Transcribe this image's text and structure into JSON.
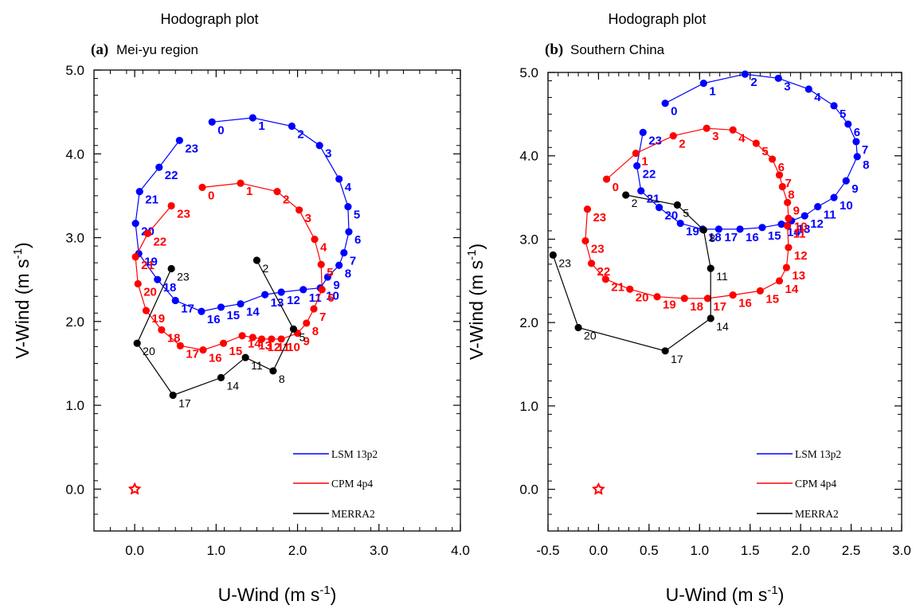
{
  "colors": {
    "lsm": "#0000ff",
    "cpm": "#ff0000",
    "merra": "#000000",
    "origin_marker": "#ff0000"
  },
  "chart_data": [
    {
      "type": "scatter",
      "title": "Hodograph plot",
      "panel_letter": "(a)",
      "subtitle": "Mei-yu region",
      "xlabel": "U-Wind (m s",
      "ylabel": "V-Wind (m s",
      "unit_superscript": "-1",
      "unit_close": ")",
      "xlim": [
        -0.5,
        4.0
      ],
      "ylim": [
        -0.5,
        5.0
      ],
      "xticks": [
        0.0,
        1.0,
        2.0,
        3.0,
        4.0
      ],
      "xtick_labels": [
        "0.0",
        "1.0",
        "2.0",
        "3.0",
        "4.0"
      ],
      "yticks": [
        0.0,
        1.0,
        2.0,
        3.0,
        4.0,
        5.0
      ],
      "ytick_labels": [
        "0.0",
        "1.0",
        "2.0",
        "3.0",
        "4.0",
        "5.0"
      ],
      "legend": [
        "LSM 13p2",
        "CPM 4p4",
        "MERRA2"
      ],
      "legend_position": "bottom-right",
      "origin_marker": {
        "x": 0,
        "y": 0,
        "shape": "star"
      },
      "series": [
        {
          "name": "LSM 13p2",
          "points": [
            {
              "x": 0.95,
              "y": 4.38,
              "label": "0"
            },
            {
              "x": 1.45,
              "y": 4.43,
              "label": "1"
            },
            {
              "x": 1.93,
              "y": 4.33,
              "label": "2"
            },
            {
              "x": 2.27,
              "y": 4.1,
              "label": "3"
            },
            {
              "x": 2.51,
              "y": 3.7,
              "label": "4"
            },
            {
              "x": 2.62,
              "y": 3.37,
              "label": "5"
            },
            {
              "x": 2.63,
              "y": 3.07,
              "label": "6"
            },
            {
              "x": 2.57,
              "y": 2.82,
              "label": "7"
            },
            {
              "x": 2.51,
              "y": 2.67,
              "label": "8"
            },
            {
              "x": 2.37,
              "y": 2.53,
              "label": "9"
            },
            {
              "x": 2.28,
              "y": 2.4,
              "label": "10"
            },
            {
              "x": 2.07,
              "y": 2.38,
              "label": "11"
            },
            {
              "x": 1.8,
              "y": 2.35,
              "label": "12"
            },
            {
              "x": 1.6,
              "y": 2.32,
              "label": "13"
            },
            {
              "x": 1.3,
              "y": 2.21,
              "label": "14"
            },
            {
              "x": 1.06,
              "y": 2.17,
              "label": "15"
            },
            {
              "x": 0.82,
              "y": 2.12,
              "label": "16"
            },
            {
              "x": 0.5,
              "y": 2.25,
              "label": "17"
            },
            {
              "x": 0.28,
              "y": 2.5,
              "label": "18"
            },
            {
              "x": 0.05,
              "y": 2.81,
              "label": "19"
            },
            {
              "x": 0.01,
              "y": 3.17,
              "label": "20"
            },
            {
              "x": 0.06,
              "y": 3.55,
              "label": "21"
            },
            {
              "x": 0.3,
              "y": 3.84,
              "label": "22"
            },
            {
              "x": 0.55,
              "y": 4.16,
              "label": "23"
            }
          ]
        },
        {
          "name": "CPM 4p4",
          "points": [
            {
              "x": 0.83,
              "y": 3.6,
              "label": "0"
            },
            {
              "x": 1.3,
              "y": 3.65,
              "label": "1"
            },
            {
              "x": 1.75,
              "y": 3.55,
              "label": "2"
            },
            {
              "x": 2.02,
              "y": 3.33,
              "label": "3"
            },
            {
              "x": 2.21,
              "y": 2.98,
              "label": "4"
            },
            {
              "x": 2.29,
              "y": 2.68,
              "label": "5"
            },
            {
              "x": 2.3,
              "y": 2.38,
              "label": "6"
            },
            {
              "x": 2.2,
              "y": 2.15,
              "label": "7"
            },
            {
              "x": 2.11,
              "y": 1.98,
              "label": "8"
            },
            {
              "x": 2.0,
              "y": 1.86,
              "label": "9"
            },
            {
              "x": 1.8,
              "y": 1.79,
              "label": "10"
            },
            {
              "x": 1.68,
              "y": 1.79,
              "label": "11"
            },
            {
              "x": 1.56,
              "y": 1.79,
              "label": "12"
            },
            {
              "x": 1.45,
              "y": 1.81,
              "label": "13"
            },
            {
              "x": 1.32,
              "y": 1.83,
              "label": "14"
            },
            {
              "x": 1.09,
              "y": 1.74,
              "label": "15"
            },
            {
              "x": 0.84,
              "y": 1.66,
              "label": "16"
            },
            {
              "x": 0.56,
              "y": 1.71,
              "label": "17"
            },
            {
              "x": 0.33,
              "y": 1.9,
              "label": "18"
            },
            {
              "x": 0.14,
              "y": 2.13,
              "label": "19"
            },
            {
              "x": 0.04,
              "y": 2.45,
              "label": "20"
            },
            {
              "x": 0.01,
              "y": 2.77,
              "label": "21"
            },
            {
              "x": 0.16,
              "y": 3.05,
              "label": "22"
            },
            {
              "x": 0.45,
              "y": 3.38,
              "label": "23"
            }
          ]
        },
        {
          "name": "MERRA2",
          "points": [
            {
              "x": 1.5,
              "y": 2.73,
              "label": "2"
            },
            {
              "x": 1.95,
              "y": 1.91,
              "label": "5"
            },
            {
              "x": 1.7,
              "y": 1.41,
              "label": "8"
            },
            {
              "x": 1.36,
              "y": 1.57,
              "label": "11"
            },
            {
              "x": 1.06,
              "y": 1.33,
              "label": "14"
            },
            {
              "x": 0.47,
              "y": 1.12,
              "label": "17"
            },
            {
              "x": 0.03,
              "y": 1.74,
              "label": "20"
            },
            {
              "x": 0.45,
              "y": 2.63,
              "label": "23"
            }
          ]
        }
      ]
    },
    {
      "type": "scatter",
      "title": "Hodograph plot",
      "panel_letter": "(b)",
      "subtitle": "Southern China",
      "xlabel": "U-Wind (m s",
      "ylabel": "V-Wind (m s",
      "unit_superscript": "-1",
      "unit_close": ")",
      "xlim": [
        -0.5,
        3.0
      ],
      "ylim": [
        -0.5,
        5.0
      ],
      "xticks": [
        -0.5,
        0.0,
        0.5,
        1.0,
        1.5,
        2.0,
        2.5,
        3.0
      ],
      "xtick_labels": [
        "-0.5",
        "0.0",
        "0.5",
        "1.0",
        "1.5",
        "2.0",
        "2.5",
        "3.0"
      ],
      "yticks": [
        0.0,
        1.0,
        2.0,
        3.0,
        4.0,
        5.0
      ],
      "ytick_labels": [
        "0.0",
        "1.0",
        "2.0",
        "3.0",
        "4.0",
        "5.0"
      ],
      "legend": [
        "LSM 13p2",
        "CPM 4p4",
        "MERRA2"
      ],
      "legend_position": "bottom-right",
      "origin_marker": {
        "x": 0,
        "y": 0,
        "shape": "star"
      },
      "series": [
        {
          "name": "LSM 13p2",
          "points": [
            {
              "x": 0.66,
              "y": 4.63,
              "label": "0"
            },
            {
              "x": 1.04,
              "y": 4.87,
              "label": "1"
            },
            {
              "x": 1.45,
              "y": 4.98,
              "label": "2"
            },
            {
              "x": 1.78,
              "y": 4.93,
              "label": "3"
            },
            {
              "x": 2.08,
              "y": 4.8,
              "label": "4"
            },
            {
              "x": 2.33,
              "y": 4.6,
              "label": "5"
            },
            {
              "x": 2.47,
              "y": 4.38,
              "label": "6"
            },
            {
              "x": 2.55,
              "y": 4.17,
              "label": "7"
            },
            {
              "x": 2.56,
              "y": 3.99,
              "label": "8"
            },
            {
              "x": 2.45,
              "y": 3.7,
              "label": "9"
            },
            {
              "x": 2.33,
              "y": 3.5,
              "label": "10"
            },
            {
              "x": 2.17,
              "y": 3.39,
              "label": "11"
            },
            {
              "x": 2.04,
              "y": 3.28,
              "label": "12"
            },
            {
              "x": 1.91,
              "y": 3.22,
              "label": "13"
            },
            {
              "x": 1.81,
              "y": 3.18,
              "label": "14"
            },
            {
              "x": 1.62,
              "y": 3.14,
              "label": "15"
            },
            {
              "x": 1.4,
              "y": 3.12,
              "label": "16"
            },
            {
              "x": 1.19,
              "y": 3.12,
              "label": "17"
            },
            {
              "x": 1.03,
              "y": 3.12,
              "label": "18"
            },
            {
              "x": 0.81,
              "y": 3.19,
              "label": "19"
            },
            {
              "x": 0.6,
              "y": 3.38,
              "label": "20"
            },
            {
              "x": 0.42,
              "y": 3.58,
              "label": "21"
            },
            {
              "x": 0.38,
              "y": 3.88,
              "label": "22"
            },
            {
              "x": 0.44,
              "y": 4.28,
              "label": "23"
            }
          ]
        },
        {
          "name": "CPM 4p4",
          "points": [
            {
              "x": 0.08,
              "y": 3.72,
              "label": "0"
            },
            {
              "x": 0.37,
              "y": 4.03,
              "label": "1"
            },
            {
              "x": 0.74,
              "y": 4.24,
              "label": "2"
            },
            {
              "x": 1.07,
              "y": 4.33,
              "label": "3"
            },
            {
              "x": 1.33,
              "y": 4.31,
              "label": "4"
            },
            {
              "x": 1.56,
              "y": 4.15,
              "label": "5"
            },
            {
              "x": 1.72,
              "y": 3.96,
              "label": "6"
            },
            {
              "x": 1.79,
              "y": 3.77,
              "label": "7"
            },
            {
              "x": 1.82,
              "y": 3.63,
              "label": "8"
            },
            {
              "x": 1.87,
              "y": 3.44,
              "label": "9"
            },
            {
              "x": 1.88,
              "y": 3.25,
              "label": "10"
            },
            {
              "x": 1.87,
              "y": 3.16,
              "label": "11"
            },
            {
              "x": 1.88,
              "y": 2.9,
              "label": "12"
            },
            {
              "x": 1.86,
              "y": 2.66,
              "label": "13"
            },
            {
              "x": 1.79,
              "y": 2.5,
              "label": "14"
            },
            {
              "x": 1.6,
              "y": 2.38,
              "label": "15"
            },
            {
              "x": 1.33,
              "y": 2.33,
              "label": "16"
            },
            {
              "x": 1.08,
              "y": 2.29,
              "label": "17"
            },
            {
              "x": 0.85,
              "y": 2.29,
              "label": "18"
            },
            {
              "x": 0.58,
              "y": 2.31,
              "label": "19"
            },
            {
              "x": 0.31,
              "y": 2.4,
              "label": "20"
            },
            {
              "x": 0.07,
              "y": 2.52,
              "label": "21"
            },
            {
              "x": -0.07,
              "y": 2.71,
              "label": "22"
            },
            {
              "x": -0.13,
              "y": 2.98,
              "label": "23"
            },
            {
              "x": -0.11,
              "y": 3.36,
              "label": "23"
            }
          ]
        },
        {
          "name": "MERRA2",
          "points": [
            {
              "x": 0.27,
              "y": 3.53,
              "label": "2"
            },
            {
              "x": 0.78,
              "y": 3.41,
              "label": "5"
            },
            {
              "x": 1.04,
              "y": 3.11,
              "label": "8"
            },
            {
              "x": 1.11,
              "y": 2.65,
              "label": "11"
            },
            {
              "x": 1.11,
              "y": 2.05,
              "label": "14"
            },
            {
              "x": 0.66,
              "y": 1.66,
              "label": "17"
            },
            {
              "x": -0.2,
              "y": 1.94,
              "label": "20"
            },
            {
              "x": -0.45,
              "y": 2.81,
              "label": "23"
            }
          ]
        }
      ]
    }
  ]
}
